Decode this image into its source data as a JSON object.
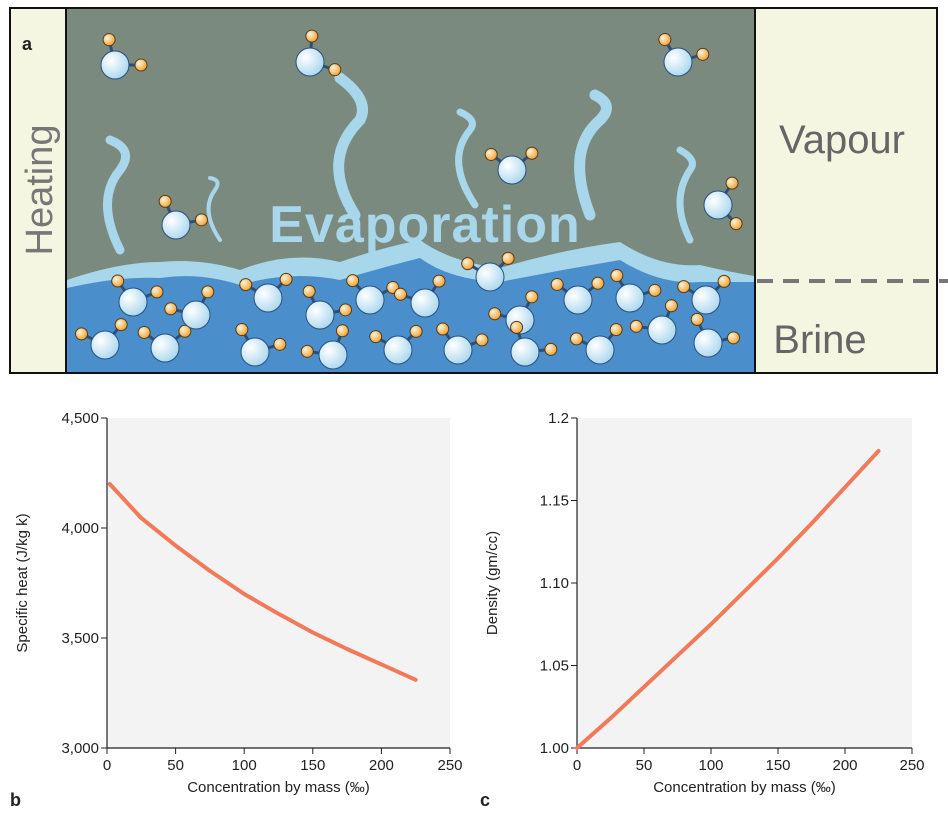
{
  "diagram": {
    "label": "a",
    "side_label": "Heating",
    "process_label": "Evaporation",
    "upper_phase": "Vapour",
    "lower_phase": "Brine"
  },
  "chart_data": [
    {
      "type": "line",
      "label": "b",
      "x_label": "Concentration by mass (‰)",
      "y_label": "Specific heat (J/kg k)",
      "x": [
        2,
        25,
        50,
        75,
        100,
        125,
        150,
        175,
        200,
        225
      ],
      "values": [
        4200,
        4045,
        3920,
        3805,
        3700,
        3610,
        3525,
        3450,
        3380,
        3310
      ],
      "color": "#f07a5a",
      "xlim": [
        0,
        250
      ],
      "xticks": [
        0,
        50,
        100,
        150,
        200,
        250
      ],
      "ylim": [
        3000,
        4500
      ],
      "yticks": [
        {
          "value": 3000,
          "label": "3,000"
        },
        {
          "value": 3500,
          "label": "3,500"
        },
        {
          "value": 4000,
          "label": "4,000"
        },
        {
          "value": 4500,
          "label": "4,500"
        }
      ]
    },
    {
      "type": "line",
      "label": "c",
      "x_label": "Concentration by mass (‰)",
      "y_label": "Density (gm/cc)",
      "x": [
        0,
        25,
        50,
        75,
        100,
        125,
        150,
        175,
        200,
        225
      ],
      "values": [
        1.0,
        1.018,
        1.037,
        1.056,
        1.075,
        1.095,
        1.115,
        1.136,
        1.158,
        1.18
      ],
      "color": "#f07a5a",
      "xlim": [
        0,
        250
      ],
      "xticks": [
        0,
        50,
        100,
        150,
        200,
        250
      ],
      "ylim": [
        1.0,
        1.2
      ],
      "yticks": [
        {
          "value": 1.0,
          "label": "1.00"
        },
        {
          "value": 1.05,
          "label": "1.05"
        },
        {
          "value": 1.1,
          "label": "1.10"
        },
        {
          "value": 1.15,
          "label": "1.15"
        },
        1.2
      ]
    }
  ]
}
